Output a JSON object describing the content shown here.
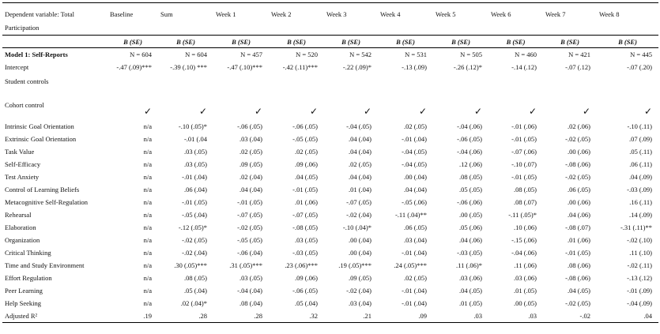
{
  "table": {
    "columns": [
      "Dependent variable: Total Participation",
      "Baseline",
      "Sum",
      "Week 1",
      "Week 2",
      "Week 3",
      "Week 4",
      "Week 5",
      "Week 6",
      "Week 7",
      "Week 8"
    ],
    "subheader": [
      "B (SE)",
      "B (SE)",
      "B (SE)",
      "B (SE)",
      "B (SE)",
      "B (SE)",
      "B (SE)",
      "B (SE)",
      "B (SE)",
      "B (SE)"
    ],
    "rows": [
      [
        "Model 1: Self-Reports",
        "N = 604",
        "N = 604",
        "N = 457",
        "N = 520",
        "N = 542",
        "N = 531",
        "N = 505",
        "N = 460",
        "N = 421",
        "N = 445"
      ],
      [
        "Intercept",
        "-.47 (.09)***",
        "-.39 (.10) ***",
        "-.47 (.10)***",
        "-.42 (.11)***",
        "-.22 (.09)*",
        "-.13 (.09)",
        "-.26 (.12)*",
        "-.14 (.12)",
        "-.07 (.12)",
        "-.07 (.20)"
      ],
      [
        "Student controls"
      ],
      [
        "Cohort control",
        "✓",
        "✓",
        "✓",
        "✓",
        "✓",
        "✓",
        "✓",
        "✓",
        "✓",
        "✓"
      ],
      [
        "Intrinsic Goal Orientation",
        "n/a",
        "-.10 (.05)*",
        "-.06 (.05)",
        "-.06 (.05)",
        "-.04 (.05)",
        ".02 (.05)",
        "-.04 (.06)",
        "-.01 (.06)",
        ".02 (.06)",
        "-.10 (.11)"
      ],
      [
        "Extrinsic Goal Orientation",
        "n/a",
        "-.01 (.04",
        ".03 (.04)",
        "-.05 (.05)",
        ".04 (.04)",
        "-.01 (.04)",
        "-.06 (.05)",
        "-.01 (.05)",
        "-.02 (.05)",
        ".07 (.09)"
      ],
      [
        "Task Value",
        "n/a",
        ".03 (.05)",
        ".02 (.05)",
        ".02 (.05)",
        ".04 (.04)",
        "-.04 (.05)",
        "-.04 (.06)",
        "-.07 (.06)",
        ".00 (.06)",
        ".05 (.11)"
      ],
      [
        "Self-Efficacy",
        "n/a",
        ".03 (.05)",
        ".09 (.05)",
        ".09 (.06)",
        ".02 (.05)",
        "-.04 (.05)",
        ".12 (.06)",
        "-.10 (.07)",
        "-.08 (.06)",
        ".06 (.11)"
      ],
      [
        "Test Anxiety",
        "n/a",
        "-.01 (.04)",
        ".02 (.04)",
        ".04 (.05)",
        ".04 (.04)",
        ".00 (.04)",
        ".08 (.05)",
        "-.01 (.05)",
        "-.02 (.05)",
        ".04 (.09)"
      ],
      [
        "Control of Learning Beliefs",
        "n/a",
        ".06 (.04)",
        ".04 (.04)",
        "-.01 (.05)",
        ".01 (.04)",
        ".04 (.04)",
        ".05 (.05)",
        ".08 (.05)",
        ".06 (.05)",
        "-.03 (.09)"
      ],
      [
        "Metacognitive Self-Regulation",
        "n/a",
        "-.01 (.05)",
        "-.01 (.05)",
        ".01 (.06)",
        "-.07 (.05)",
        "-.05 (.06)",
        "-.06 (.06)",
        ".08 (.07)",
        ".00 (.06)",
        ".16 (.11)"
      ],
      [
        "Rehearsal",
        "n/a",
        "-.05 (.04)",
        "-.07 (.05)",
        "-.07 (.05)",
        "-.02 (.04)",
        "-.11 (.04)**",
        ".00 (.05)",
        "-.11 (.05)*",
        ".04 (.06)",
        ".14 (.09)"
      ],
      [
        "Elaboration",
        "n/a",
        "-.12 (.05)*",
        "-.02 (.05)",
        "-.08 (.05)",
        "-.10 (.04)*",
        ".06 (.05)",
        ".05 (.06)",
        ".10 (.06)",
        "-.08 (.07)",
        "-.31 (.11)**"
      ],
      [
        "Organization",
        "n/a",
        "-.02 (.05)",
        "-.05 (.05)",
        ".03 (.05)",
        ".00 (.04)",
        ".03 (.04)",
        ".04 (.06)",
        "-.15 (.06)",
        ".01 (.06)",
        "-.02 (.10)"
      ],
      [
        "Critical Thinking",
        "n/a",
        "-.02 (.04)",
        "-.06 (.04)",
        "-.03 (.05)",
        ".00 (.04)",
        "-.01 (.04)",
        "-.03 (.05)",
        "-.04 (.06)",
        "-.01 (.05)",
        ".11 (.10)"
      ],
      [
        "Time and Study Environment",
        "n/a",
        ".30 (.05)***",
        ".31 (.05)***",
        ".23 (.06)***",
        ".19 (.05)***",
        ".24 (.05)***",
        ".11 (.06)*",
        ".11 (.06)",
        ".08 (.06)",
        "-.02 (.11)"
      ],
      [
        "Effort Regulation",
        "n/a",
        ".08 (.05)",
        ".03 (.05)",
        ".09 (.06)",
        ".09 (.05)",
        ".02 (.05)",
        ".03 (.06)",
        ".03 (.06)",
        "-.08 (.06)",
        "-.13 (.12)"
      ],
      [
        "Peer Learning",
        "n/a",
        ".05 (.04)",
        "-.04 (.04)",
        "-.06 (.05)",
        "-.02 (.04)",
        "-.01 (.04)",
        ".04 (.05)",
        ".01 (.05)",
        ".04 (.05)",
        "-.01 (.09)"
      ],
      [
        "Help Seeking",
        "n/a",
        ".02 (.04)*",
        ".08 (.04)",
        ".05 (.04)",
        ".03 (.04)",
        "-.01 (.04)",
        ".01 (.05)",
        ".00 (.05)",
        "-.02 (.05)",
        "-.04 (.09)"
      ],
      [
        "Adjusted R²",
        ".19",
        ".28",
        ".28",
        ".32",
        ".21",
        ".09",
        ".03",
        ".03",
        "-.02",
        ".04"
      ]
    ]
  }
}
